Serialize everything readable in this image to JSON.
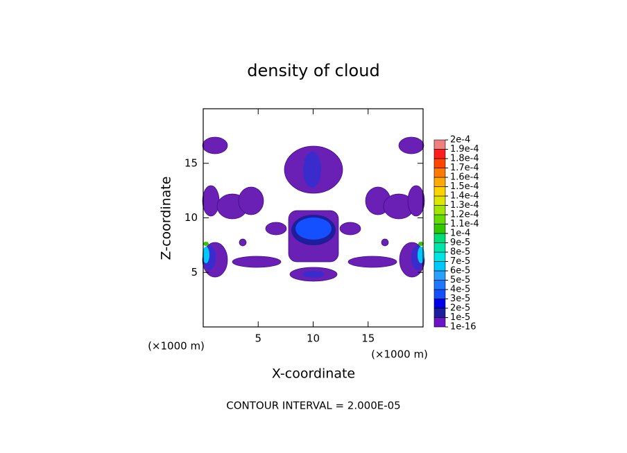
{
  "chart_data": {
    "type": "contour",
    "title": "density of cloud",
    "xlabel": "X-coordinate",
    "ylabel": "Z-coordinate",
    "x_unit_labels": [
      "(×1000 m)",
      "(×1000 m)"
    ],
    "annotation": "CONTOUR INTERVAL = 2.000E-05",
    "xlim": [
      0,
      20
    ],
    "ylim": [
      0,
      20
    ],
    "xticks": [
      5,
      10,
      15
    ],
    "yticks": [
      5,
      10,
      15
    ],
    "colorbar": {
      "levels": [
        {
          "value": 1e-16,
          "label": "1e-16"
        },
        {
          "value": 1e-05,
          "label": "1e-5"
        },
        {
          "value": 2e-05,
          "label": "2e-5"
        },
        {
          "value": 3e-05,
          "label": "3e-5"
        },
        {
          "value": 4e-05,
          "label": "4e-5"
        },
        {
          "value": 5e-05,
          "label": "5e-5"
        },
        {
          "value": 6e-05,
          "label": "6e-5"
        },
        {
          "value": 7e-05,
          "label": "7e-5"
        },
        {
          "value": 8e-05,
          "label": "8e-5"
        },
        {
          "value": 9e-05,
          "label": "9e-5"
        },
        {
          "value": 0.0001,
          "label": "1e-4"
        },
        {
          "value": 0.00011,
          "label": "1.1e-4"
        },
        {
          "value": 0.00012,
          "label": "1.2e-4"
        },
        {
          "value": 0.00013,
          "label": "1.3e-4"
        },
        {
          "value": 0.00014,
          "label": "1.4e-4"
        },
        {
          "value": 0.00015,
          "label": "1.5e-4"
        },
        {
          "value": 0.00016,
          "label": "1.6e-4"
        },
        {
          "value": 0.00017,
          "label": "1.7e-4"
        },
        {
          "value": 0.00018,
          "label": "1.8e-4"
        },
        {
          "value": 0.00019,
          "label": "1.9e-4"
        },
        {
          "value": 0.0002,
          "label": "2e-4"
        }
      ],
      "colors": [
        "#6e14c8",
        "#1e1e9c",
        "#0000e6",
        "#1450ff",
        "#1e78ff",
        "#28a0ff",
        "#00c8ff",
        "#00e6e6",
        "#00e6aa",
        "#00dc78",
        "#32c800",
        "#64dc00",
        "#a0e600",
        "#dce600",
        "#ffd200",
        "#ffaa00",
        "#ff7800",
        "#ff4600",
        "#ff1e1e",
        "#f08080"
      ]
    }
  }
}
